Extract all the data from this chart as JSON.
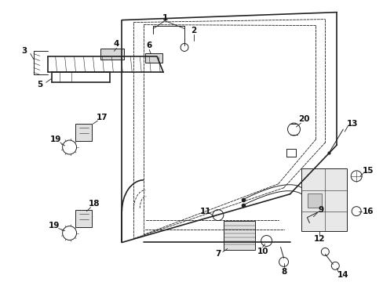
{
  "bg_color": "#ffffff",
  "line_color": "#222222",
  "lw_main": 1.2,
  "lw_thin": 0.7,
  "lw_dash": 0.6,
  "figsize": [
    4.89,
    3.6
  ],
  "dpi": 100
}
